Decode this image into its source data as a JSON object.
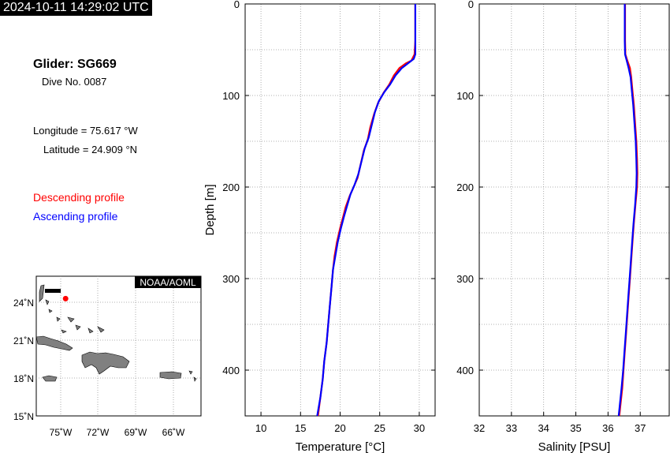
{
  "header": {
    "timestamp": "2024-10-11 14:29:02 UTC",
    "glider": "Glider: SG669",
    "dive": "Dive No. 0087",
    "longitude": "Longitude = 75.617 °W",
    "latitude": "Latitude = 24.909 °N"
  },
  "legend": {
    "descending": "Descending profile",
    "ascending": "Ascending profile",
    "descending_color": "#ff0000",
    "ascending_color": "#0000ff"
  },
  "map": {
    "credit": "NOAA/AOML",
    "lat_ticks": [
      "24˚N",
      "21˚N",
      "18˚N",
      "15˚N"
    ],
    "lon_ticks": [
      "75˚W",
      "72˚W",
      "69˚W",
      "66˚W"
    ],
    "glider_position": {
      "lon": -75.617,
      "lat": 24.909
    },
    "land_color": "#808080"
  },
  "chart_data": [
    {
      "type": "line",
      "xlabel": "Temperature [°C]",
      "ylabel": "Depth [m]",
      "xlim": [
        8,
        32
      ],
      "ylim": [
        0,
        450
      ],
      "y_inverted": true,
      "x_ticks": [
        10,
        15,
        20,
        25,
        30
      ],
      "y_ticks": [
        0,
        100,
        200,
        300,
        400
      ],
      "grid": true,
      "series": [
        {
          "name": "Descending profile",
          "color": "#ff0000",
          "points": [
            [
              29.5,
              0
            ],
            [
              29.5,
              20
            ],
            [
              29.5,
              40
            ],
            [
              29.4,
              55
            ],
            [
              29.0,
              62
            ],
            [
              28.3,
              65
            ],
            [
              27.5,
              70
            ],
            [
              26.8,
              78
            ],
            [
              26.2,
              88
            ],
            [
              25.5,
              97
            ],
            [
              24.8,
              108
            ],
            [
              24.3,
              120
            ],
            [
              23.8,
              135
            ],
            [
              23.5,
              148
            ],
            [
              23.0,
              160
            ],
            [
              22.6,
              175
            ],
            [
              22.2,
              190
            ],
            [
              21.7,
              200
            ],
            [
              21.2,
              210
            ],
            [
              20.7,
              222
            ],
            [
              20.4,
              232
            ],
            [
              20.0,
              245
            ],
            [
              19.6,
              260
            ],
            [
              19.3,
              275
            ],
            [
              19.1,
              290
            ],
            [
              18.9,
              310
            ],
            [
              18.7,
              330
            ],
            [
              18.5,
              350
            ],
            [
              18.3,
              370
            ],
            [
              18.0,
              390
            ],
            [
              17.8,
              410
            ],
            [
              17.5,
              430
            ],
            [
              17.2,
              450
            ]
          ]
        },
        {
          "name": "Ascending profile",
          "color": "#0000ff",
          "points": [
            [
              29.5,
              0
            ],
            [
              29.5,
              20
            ],
            [
              29.5,
              40
            ],
            [
              29.5,
              55
            ],
            [
              29.3,
              60
            ],
            [
              28.7,
              64
            ],
            [
              27.8,
              70
            ],
            [
              27.0,
              78
            ],
            [
              26.3,
              88
            ],
            [
              25.6,
              96
            ],
            [
              24.9,
              106
            ],
            [
              24.4,
              118
            ],
            [
              24.0,
              132
            ],
            [
              23.6,
              146
            ],
            [
              23.1,
              158
            ],
            [
              22.7,
              172
            ],
            [
              22.3,
              186
            ],
            [
              21.8,
              198
            ],
            [
              21.3,
              208
            ],
            [
              20.9,
              220
            ],
            [
              20.5,
              232
            ],
            [
              20.1,
              245
            ],
            [
              19.7,
              260
            ],
            [
              19.4,
              275
            ],
            [
              19.1,
              290
            ],
            [
              18.9,
              310
            ],
            [
              18.7,
              330
            ],
            [
              18.5,
              350
            ],
            [
              18.3,
              370
            ],
            [
              18.0,
              390
            ],
            [
              17.8,
              410
            ],
            [
              17.5,
              430
            ],
            [
              17.1,
              450
            ]
          ]
        }
      ]
    },
    {
      "type": "line",
      "xlabel": "Salinity [PSU]",
      "ylabel": "",
      "xlim": [
        32,
        37.9
      ],
      "ylim": [
        0,
        450
      ],
      "y_inverted": true,
      "x_ticks": [
        32,
        33,
        34,
        35,
        36,
        37
      ],
      "y_ticks": [
        0,
        100,
        200,
        300,
        400
      ],
      "grid": true,
      "series": [
        {
          "name": "Descending profile",
          "color": "#ff0000",
          "points": [
            [
              36.53,
              0
            ],
            [
              36.53,
              20
            ],
            [
              36.53,
              40
            ],
            [
              36.54,
              55
            ],
            [
              36.6,
              62
            ],
            [
              36.68,
              70
            ],
            [
              36.72,
              80
            ],
            [
              36.76,
              95
            ],
            [
              36.8,
              110
            ],
            [
              36.84,
              130
            ],
            [
              36.88,
              150
            ],
            [
              36.9,
              170
            ],
            [
              36.91,
              185
            ],
            [
              36.9,
              200
            ],
            [
              36.85,
              220
            ],
            [
              36.8,
              240
            ],
            [
              36.76,
              260
            ],
            [
              36.72,
              280
            ],
            [
              36.68,
              300
            ],
            [
              36.64,
              320
            ],
            [
              36.6,
              340
            ],
            [
              36.56,
              360
            ],
            [
              36.52,
              380
            ],
            [
              36.48,
              400
            ],
            [
              36.44,
              420
            ],
            [
              36.38,
              440
            ],
            [
              36.35,
              450
            ]
          ]
        },
        {
          "name": "Ascending profile",
          "color": "#0000ff",
          "points": [
            [
              36.52,
              0
            ],
            [
              36.52,
              20
            ],
            [
              36.52,
              40
            ],
            [
              36.53,
              55
            ],
            [
              36.58,
              62
            ],
            [
              36.64,
              70
            ],
            [
              36.7,
              80
            ],
            [
              36.74,
              95
            ],
            [
              36.78,
              110
            ],
            [
              36.82,
              130
            ],
            [
              36.86,
              150
            ],
            [
              36.88,
              170
            ],
            [
              36.89,
              185
            ],
            [
              36.88,
              200
            ],
            [
              36.84,
              220
            ],
            [
              36.79,
              240
            ],
            [
              36.75,
              260
            ],
            [
              36.71,
              280
            ],
            [
              36.67,
              300
            ],
            [
              36.63,
              320
            ],
            [
              36.59,
              340
            ],
            [
              36.55,
              360
            ],
            [
              36.51,
              380
            ],
            [
              36.47,
              400
            ],
            [
              36.42,
              420
            ],
            [
              36.36,
              440
            ],
            [
              36.33,
              450
            ]
          ]
        }
      ]
    }
  ]
}
